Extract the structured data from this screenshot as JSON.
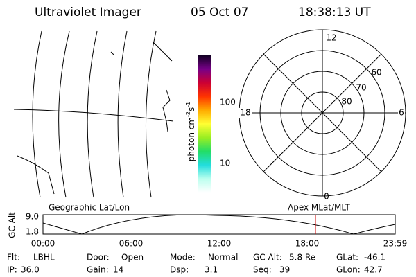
{
  "header": {
    "title": "Ultraviolet Imager",
    "date": "05 Oct 07",
    "time": "18:38:13 UT"
  },
  "colorbar": {
    "unit": [
      "photon cm",
      "-2",
      "s",
      "-1"
    ],
    "ticks": [
      "100",
      "10"
    ]
  },
  "polar": {
    "labels": {
      "top": "12",
      "bottom": "0",
      "left": "18",
      "right": "6"
    },
    "rings": [
      "60",
      "70",
      "80"
    ]
  },
  "timeline": {
    "left_title": "Geographic Lat/Lon",
    "right_title": "Apex MLat/MLT",
    "axis_label": "GC Alt",
    "yticks": [
      "9.0",
      "1.8"
    ],
    "xticks": [
      "00:00",
      "06:00",
      "12:00",
      "18:00",
      "23:59"
    ]
  },
  "status": {
    "rows": [
      [
        [
          "Flt:",
          "LBHL"
        ],
        [
          "Door:",
          "Open"
        ],
        [
          "Mode:",
          "Normal"
        ],
        [
          "GC Alt:",
          "5.8 Re"
        ],
        [
          "GLat:",
          "-46.1"
        ]
      ],
      [
        [
          "IP:",
          "36.0"
        ],
        [
          "Gain:",
          "14"
        ],
        [
          "Dsp:",
          "3.1"
        ],
        [
          "Seq:",
          "39"
        ],
        [
          "GLon:",
          "42.7"
        ]
      ]
    ]
  }
}
